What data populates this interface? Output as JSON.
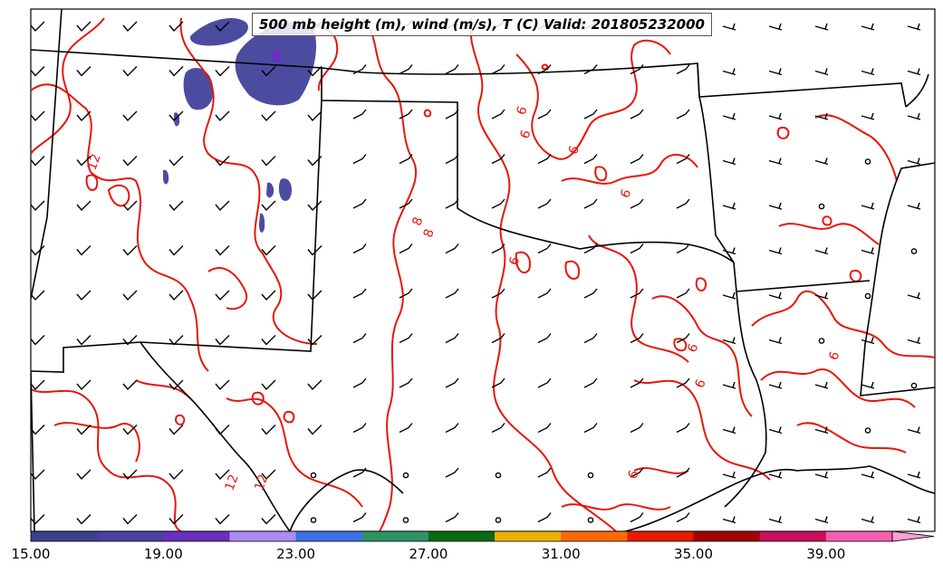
{
  "title": "500 mb height (m), wind (m/s), T (C) Valid: 201805232000",
  "colorbar": {
    "min": 15,
    "max": 41,
    "step": 2,
    "colors": [
      "#3b3f8f",
      "#4b3fa0",
      "#6a2fc0",
      "#a98cf5",
      "#3a6fe6",
      "#2e9464",
      "#0a6b12",
      "#eab200",
      "#fa6a00",
      "#e61b00",
      "#a30000",
      "#c8105a",
      "#f55fb0",
      "#ff9fd8"
    ],
    "tick_labels": [
      "15.00",
      "19.00",
      "23.00",
      "27.00",
      "31.00",
      "35.00",
      "39.00"
    ]
  },
  "contour_labels": [
    {
      "text": "12",
      "lon": -107.9,
      "lat": 37.3
    },
    {
      "text": "12",
      "lon": -104.2,
      "lat": 29.2
    },
    {
      "text": "12",
      "lon": -103.4,
      "lat": 29.2
    },
    {
      "text": "8",
      "lon": -99.2,
      "lat": 35.8
    },
    {
      "text": "8",
      "lon": -98.9,
      "lat": 35.5
    },
    {
      "text": "6",
      "lon": -96.4,
      "lat": 38.6
    },
    {
      "text": "6",
      "lon": -96.3,
      "lat": 38.0
    },
    {
      "text": "6",
      "lon": -95.0,
      "lat": 37.6
    },
    {
      "text": "6",
      "lon": -93.6,
      "lat": 36.5
    },
    {
      "text": "6",
      "lon": -96.6,
      "lat": 34.8
    },
    {
      "text": "6",
      "lon": -91.8,
      "lat": 32.6
    },
    {
      "text": "6",
      "lon": -91.6,
      "lat": 31.7
    },
    {
      "text": "6",
      "lon": -88.0,
      "lat": 32.4
    },
    {
      "text": "6",
      "lon": -93.4,
      "lat": 29.4
    }
  ],
  "icons": [
    "wind-barb-icon",
    "calm-wind-circle-icon"
  ]
}
